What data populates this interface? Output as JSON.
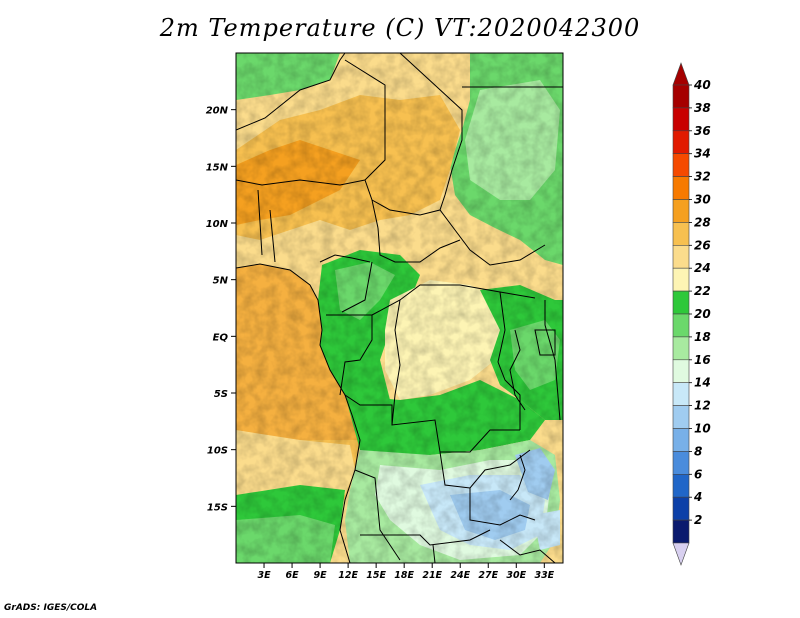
{
  "title": "2m Temperature (C) VT:2020042300",
  "credit": "GrADS: IGES/COLA",
  "map": {
    "lat_labels": [
      "20N",
      "15N",
      "10N",
      "5N",
      "EQ",
      "5S",
      "10S",
      "15S"
    ],
    "lat_values": [
      20,
      15,
      10,
      5,
      0,
      -5,
      -10,
      -15
    ],
    "lon_labels": [
      "3E",
      "6E",
      "9E",
      "12E",
      "15E",
      "18E",
      "21E",
      "24E",
      "27E",
      "30E",
      "33E"
    ],
    "lon_values": [
      3,
      6,
      9,
      12,
      15,
      18,
      21,
      24,
      27,
      30,
      33
    ],
    "lon_range": [
      0,
      35
    ],
    "lat_range": [
      -20,
      25
    ]
  },
  "colorbar": {
    "labels": [
      "40",
      "38",
      "36",
      "34",
      "32",
      "30",
      "28",
      "26",
      "24",
      "22",
      "20",
      "18",
      "16",
      "14",
      "12",
      "10",
      "8",
      "6",
      "4",
      "2"
    ],
    "colors": [
      "#a50000",
      "#c80000",
      "#e11a00",
      "#f54a00",
      "#f77a00",
      "#f5a020",
      "#f7c050",
      "#fbdc8c",
      "#fdf4b4",
      "#2ec83a",
      "#6bd86b",
      "#a8eaa0",
      "#e0fae0",
      "#c8e8f8",
      "#a0ccf0",
      "#78b0e8",
      "#4a8cdc",
      "#2066c8",
      "#0c40a8",
      "#0a1a6e"
    ],
    "top_arrow_color": "#a50000",
    "bottom_arrow_color": "#d8d0f0"
  }
}
